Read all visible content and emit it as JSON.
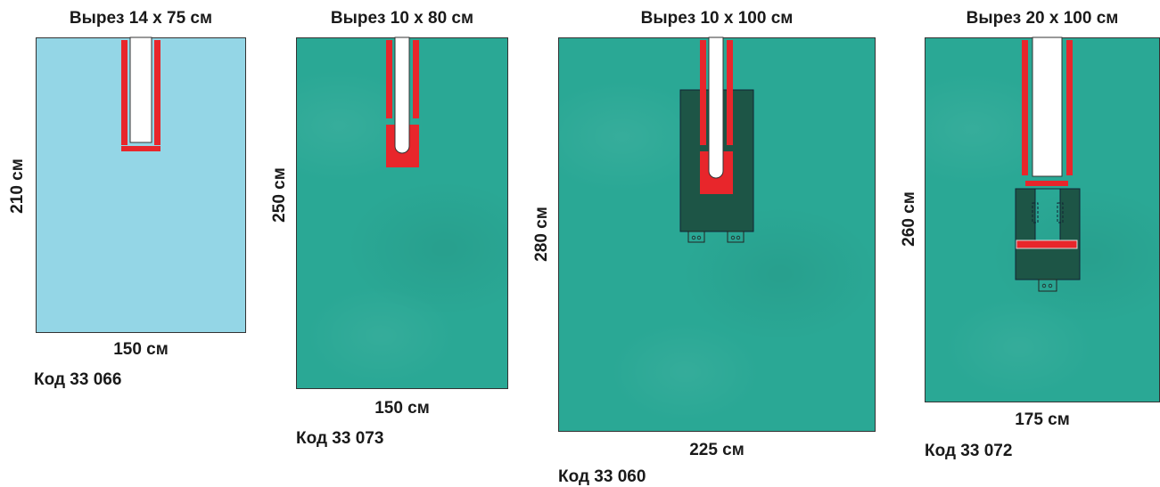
{
  "colors": {
    "teal_sheet": "#2aa895",
    "blue_sheet": "#94d6e6",
    "adhesive_red": "#e8262b",
    "dark_pouch": "#1d5546",
    "slit_fill": "#ffffff"
  },
  "drapes": [
    {
      "title": "Вырез 14 х 75 см",
      "height_label": "210 см",
      "width_label": "150 см",
      "code_label": "Код 33 066",
      "sheet_color": "blue"
    },
    {
      "title": "Вырез 10 х 80 см",
      "height_label": "250 см",
      "width_label": "150 см",
      "code_label": "Код 33 073",
      "sheet_color": "teal"
    },
    {
      "title": "Вырез 10 х 100 см",
      "height_label": "280 см",
      "width_label": "225 см",
      "code_label": "Код 33 060",
      "sheet_color": "teal"
    },
    {
      "title": "Вырез 20 х 100 см",
      "height_label": "260 см",
      "width_label": "175 см",
      "code_label": "Код 33 072",
      "sheet_color": "teal"
    }
  ]
}
